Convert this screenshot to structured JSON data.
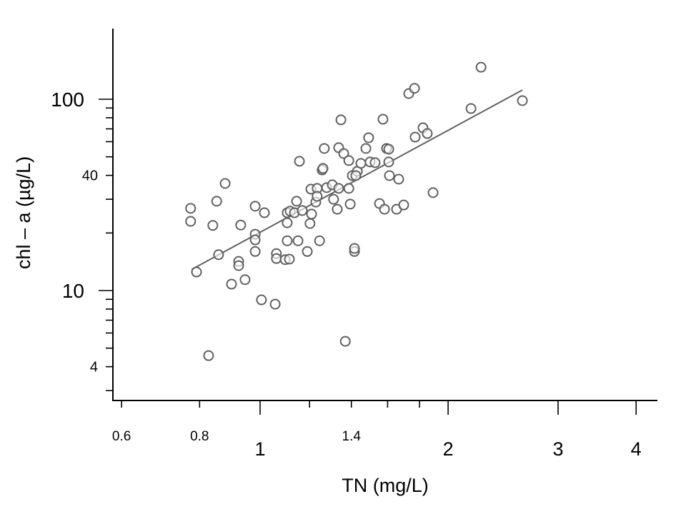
{
  "chart_data": {
    "type": "scatter",
    "title": "",
    "xlabel": "TN (mg/L)",
    "ylabel": "chl – a (µg/L)",
    "xscale": "log",
    "yscale": "log",
    "xlim": [
      0.58,
      4.4
    ],
    "ylim": [
      2.6,
      234
    ],
    "grid": false,
    "legend": "none",
    "colors": {
      "marker": "#606060",
      "line": "#606060",
      "axis": "#000000"
    },
    "x_ticks_major": [
      {
        "value": 1,
        "label": "1"
      },
      {
        "value": 2,
        "label": "2"
      },
      {
        "value": 3,
        "label": "3"
      },
      {
        "value": 4,
        "label": "4"
      }
    ],
    "x_ticks_minor": [
      {
        "value": 0.6,
        "label": "0.6"
      },
      {
        "value": 0.8,
        "label": "0.8"
      },
      {
        "value": 1.2,
        "label": ""
      },
      {
        "value": 1.4,
        "label": "1.4"
      },
      {
        "value": 1.6,
        "label": ""
      },
      {
        "value": 1.8,
        "label": ""
      }
    ],
    "y_ticks_major": [
      {
        "value": 10,
        "label": "10"
      },
      {
        "value": 100,
        "label": "100"
      }
    ],
    "y_ticks_minor": [
      {
        "value": 3,
        "label": ""
      },
      {
        "value": 4,
        "label": "4"
      },
      {
        "value": 5,
        "label": ""
      },
      {
        "value": 6,
        "label": ""
      },
      {
        "value": 7,
        "label": ""
      },
      {
        "value": 8,
        "label": ""
      },
      {
        "value": 9,
        "label": ""
      },
      {
        "value": 20,
        "label": ""
      },
      {
        "value": 30,
        "label": ""
      },
      {
        "value": 40,
        "label": "40"
      },
      {
        "value": 50,
        "label": ""
      },
      {
        "value": 60,
        "label": ""
      },
      {
        "value": 70,
        "label": ""
      },
      {
        "value": 80,
        "label": ""
      },
      {
        "value": 90,
        "label": ""
      }
    ],
    "trend_line": {
      "x": [
        0.777,
        2.63
      ],
      "y": [
        12.9,
        111.7
      ]
    },
    "points": [
      [
        0.774,
        26.9
      ],
      [
        0.774,
        23.0
      ],
      [
        0.791,
        12.5
      ],
      [
        0.827,
        4.57
      ],
      [
        0.84,
        21.9
      ],
      [
        0.852,
        29.3
      ],
      [
        0.858,
        15.4
      ],
      [
        0.879,
        36.3
      ],
      [
        0.9,
        10.8
      ],
      [
        0.924,
        14.2
      ],
      [
        0.924,
        13.5
      ],
      [
        0.931,
        22.0
      ],
      [
        0.946,
        11.4
      ],
      [
        0.982,
        27.6
      ],
      [
        0.982,
        19.7
      ],
      [
        0.982,
        18.4
      ],
      [
        0.982,
        16.0
      ],
      [
        1.005,
        8.94
      ],
      [
        1.016,
        25.5
      ],
      [
        1.057,
        8.49
      ],
      [
        1.062,
        15.6
      ],
      [
        1.062,
        14.7
      ],
      [
        1.097,
        14.5
      ],
      [
        1.114,
        14.6
      ],
      [
        1.105,
        25.5
      ],
      [
        1.105,
        22.6
      ],
      [
        1.105,
        18.2
      ],
      [
        1.117,
        26.0
      ],
      [
        1.135,
        25.5
      ],
      [
        1.144,
        29.3
      ],
      [
        1.15,
        18.2
      ],
      [
        1.156,
        47.4
      ],
      [
        1.168,
        26.2
      ],
      [
        1.19,
        16.0
      ],
      [
        1.202,
        22.4
      ],
      [
        1.209,
        25.1
      ],
      [
        1.206,
        33.9
      ],
      [
        1.228,
        29.0
      ],
      [
        1.234,
        34.2
      ],
      [
        1.245,
        18.2
      ],
      [
        1.234,
        31.1
      ],
      [
        1.257,
        42.7
      ],
      [
        1.261,
        43.5
      ],
      [
        1.267,
        55.3
      ],
      [
        1.278,
        34.5
      ],
      [
        1.305,
        35.7
      ],
      [
        1.311,
        30.0
      ],
      [
        1.329,
        26.6
      ],
      [
        1.336,
        55.8
      ],
      [
        1.336,
        34.2
      ],
      [
        1.347,
        78.0
      ],
      [
        1.361,
        52.0
      ],
      [
        1.369,
        5.43
      ],
      [
        1.387,
        34.2
      ],
      [
        1.387,
        47.8
      ],
      [
        1.394,
        28.3
      ],
      [
        1.405,
        39.9
      ],
      [
        1.416,
        16.0
      ],
      [
        1.416,
        16.6
      ],
      [
        1.431,
        42.0
      ],
      [
        1.423,
        39.9
      ],
      [
        1.45,
        46.2
      ],
      [
        1.477,
        55.3
      ],
      [
        1.492,
        62.9
      ],
      [
        1.5,
        47.0
      ],
      [
        1.528,
        46.6
      ],
      [
        1.553,
        28.5
      ],
      [
        1.573,
        78.6
      ],
      [
        1.582,
        26.6
      ],
      [
        1.594,
        55.3
      ],
      [
        1.607,
        54.8
      ],
      [
        1.607,
        47.0
      ],
      [
        1.611,
        39.9
      ],
      [
        1.654,
        26.6
      ],
      [
        1.667,
        38.2
      ],
      [
        1.698,
        28.0
      ],
      [
        1.73,
        107
      ],
      [
        1.767,
        114
      ],
      [
        1.771,
        63.4
      ],
      [
        1.823,
        70.9
      ],
      [
        1.852,
        66.2
      ],
      [
        1.892,
        32.5
      ],
      [
        2.176,
        89.4
      ],
      [
        2.258,
        147
      ],
      [
        2.63,
        98.3
      ]
    ]
  }
}
